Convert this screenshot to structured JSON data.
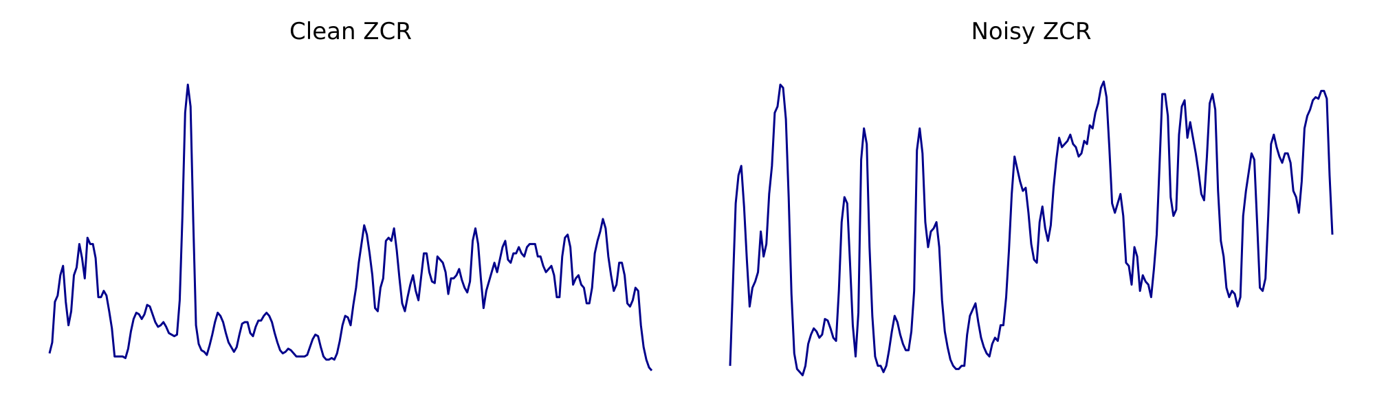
{
  "colors": {
    "line": "#00008b",
    "background": "#ffffff"
  },
  "chart_data": [
    {
      "type": "line",
      "title": "Clean ZCR",
      "axes_visible": false,
      "grid": false,
      "ylim": [
        0,
        1
      ],
      "series": [
        {
          "values": [
            0.08,
            0.115,
            0.245,
            0.265,
            0.33,
            0.36,
            0.245,
            0.17,
            0.215,
            0.33,
            0.355,
            0.43,
            0.385,
            0.32,
            0.45,
            0.43,
            0.43,
            0.385,
            0.26,
            0.26,
            0.28,
            0.265,
            0.215,
            0.16,
            0.07,
            0.07,
            0.07,
            0.07,
            0.065,
            0.095,
            0.15,
            0.19,
            0.21,
            0.205,
            0.19,
            0.205,
            0.235,
            0.23,
            0.205,
            0.18,
            0.165,
            0.17,
            0.18,
            0.165,
            0.145,
            0.14,
            0.135,
            0.14,
            0.25,
            0.52,
            0.85,
            0.94,
            0.87,
            0.5,
            0.17,
            0.11,
            0.09,
            0.085,
            0.075,
            0.105,
            0.14,
            0.18,
            0.21,
            0.2,
            0.18,
            0.145,
            0.115,
            0.1,
            0.085,
            0.1,
            0.14,
            0.175,
            0.18,
            0.18,
            0.145,
            0.135,
            0.165,
            0.185,
            0.185,
            0.2,
            0.21,
            0.2,
            0.18,
            0.145,
            0.115,
            0.09,
            0.08,
            0.085,
            0.095,
            0.09,
            0.08,
            0.07,
            0.07,
            0.07,
            0.07,
            0.075,
            0.1,
            0.125,
            0.14,
            0.135,
            0.1,
            0.07,
            0.06,
            0.06,
            0.065,
            0.06,
            0.08,
            0.12,
            0.17,
            0.2,
            0.195,
            0.17,
            0.235,
            0.29,
            0.37,
            0.43,
            0.49,
            0.46,
            0.4,
            0.33,
            0.225,
            0.215,
            0.29,
            0.32,
            0.44,
            0.45,
            0.44,
            0.48,
            0.41,
            0.32,
            0.24,
            0.215,
            0.26,
            0.3,
            0.33,
            0.28,
            0.25,
            0.325,
            0.4,
            0.4,
            0.34,
            0.31,
            0.305,
            0.39,
            0.38,
            0.37,
            0.34,
            0.27,
            0.32,
            0.32,
            0.33,
            0.35,
            0.315,
            0.29,
            0.275,
            0.31,
            0.44,
            0.48,
            0.43,
            0.32,
            0.225,
            0.28,
            0.31,
            0.34,
            0.37,
            0.34,
            0.38,
            0.42,
            0.44,
            0.38,
            0.37,
            0.4,
            0.4,
            0.42,
            0.4,
            0.39,
            0.42,
            0.43,
            0.43,
            0.43,
            0.39,
            0.39,
            0.36,
            0.34,
            0.35,
            0.36,
            0.33,
            0.26,
            0.26,
            0.39,
            0.45,
            0.46,
            0.42,
            0.3,
            0.32,
            0.33,
            0.3,
            0.29,
            0.24,
            0.24,
            0.29,
            0.4,
            0.44,
            0.47,
            0.51,
            0.48,
            0.39,
            0.33,
            0.28,
            0.3,
            0.37,
            0.37,
            0.33,
            0.24,
            0.23,
            0.25,
            0.29,
            0.28,
            0.17,
            0.1,
            0.06,
            0.035,
            0.025
          ]
        }
      ]
    },
    {
      "type": "line",
      "title": "Noisy ZCR",
      "axes_visible": false,
      "grid": false,
      "ylim": [
        0,
        1
      ],
      "series": [
        {
          "values": [
            0.04,
            0.3,
            0.56,
            0.65,
            0.68,
            0.55,
            0.38,
            0.23,
            0.29,
            0.31,
            0.34,
            0.47,
            0.39,
            0.43,
            0.59,
            0.68,
            0.85,
            0.87,
            0.94,
            0.93,
            0.83,
            0.58,
            0.27,
            0.08,
            0.03,
            0.02,
            0.01,
            0.04,
            0.11,
            0.14,
            0.16,
            0.15,
            0.13,
            0.14,
            0.19,
            0.185,
            0.16,
            0.13,
            0.12,
            0.28,
            0.5,
            0.58,
            0.56,
            0.37,
            0.17,
            0.07,
            0.21,
            0.7,
            0.8,
            0.75,
            0.42,
            0.2,
            0.07,
            0.04,
            0.04,
            0.02,
            0.04,
            0.09,
            0.15,
            0.2,
            0.18,
            0.14,
            0.11,
            0.09,
            0.09,
            0.15,
            0.28,
            0.73,
            0.8,
            0.72,
            0.5,
            0.42,
            0.47,
            0.48,
            0.5,
            0.42,
            0.25,
            0.15,
            0.1,
            0.06,
            0.04,
            0.03,
            0.03,
            0.04,
            0.04,
            0.14,
            0.2,
            0.22,
            0.24,
            0.18,
            0.13,
            0.1,
            0.08,
            0.07,
            0.11,
            0.13,
            0.12,
            0.17,
            0.17,
            0.26,
            0.41,
            0.59,
            0.71,
            0.67,
            0.63,
            0.6,
            0.61,
            0.53,
            0.43,
            0.38,
            0.37,
            0.5,
            0.55,
            0.48,
            0.44,
            0.49,
            0.61,
            0.7,
            0.77,
            0.74,
            0.75,
            0.76,
            0.78,
            0.75,
            0.74,
            0.71,
            0.72,
            0.76,
            0.75,
            0.81,
            0.8,
            0.85,
            0.88,
            0.93,
            0.95,
            0.9,
            0.74,
            0.56,
            0.53,
            0.56,
            0.59,
            0.52,
            0.37,
            0.36,
            0.3,
            0.42,
            0.39,
            0.28,
            0.33,
            0.31,
            0.3,
            0.26,
            0.35,
            0.46,
            0.68,
            0.91,
            0.91,
            0.84,
            0.58,
            0.52,
            0.54,
            0.78,
            0.87,
            0.89,
            0.77,
            0.82,
            0.77,
            0.72,
            0.66,
            0.59,
            0.57,
            0.71,
            0.88,
            0.91,
            0.86,
            0.6,
            0.44,
            0.39,
            0.29,
            0.26,
            0.28,
            0.27,
            0.23,
            0.26,
            0.52,
            0.6,
            0.66,
            0.72,
            0.7,
            0.5,
            0.29,
            0.28,
            0.32,
            0.52,
            0.75,
            0.78,
            0.74,
            0.71,
            0.69,
            0.72,
            0.72,
            0.69,
            0.6,
            0.58,
            0.53,
            0.63,
            0.8,
            0.84,
            0.86,
            0.89,
            0.9,
            0.895,
            0.92,
            0.92,
            0.895,
            0.65,
            0.46
          ]
        }
      ]
    }
  ]
}
